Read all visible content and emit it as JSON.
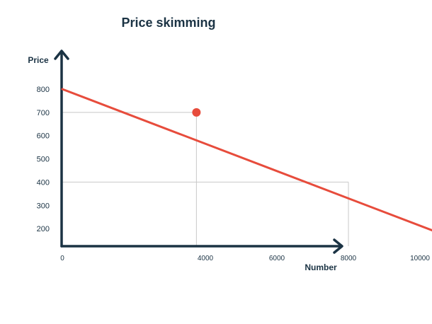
{
  "chart_data": {
    "type": "line",
    "title": "Price skimming",
    "xlabel": "Number",
    "ylabel": "Price",
    "xlim": [
      0,
      12000
    ],
    "ylim": [
      130,
      820
    ],
    "x_ticks": [
      0,
      4000,
      6000,
      8000,
      10000
    ],
    "x_tick_labels": [
      "0",
      "4000",
      "6000",
      "8000",
      "10000"
    ],
    "y_ticks": [
      200,
      300,
      400,
      500,
      600,
      700,
      800
    ],
    "y_tick_labels": [
      "200",
      "300",
      "400",
      "500",
      "600",
      "700",
      "800"
    ],
    "series": [
      {
        "x": [
          0,
          11500
        ],
        "y": [
          800,
          140
        ]
      }
    ],
    "highlight_point": {
      "x": 3750,
      "y": 700
    },
    "reference_lines": [
      {
        "from": {
          "x": 0,
          "y": 700
        },
        "to": {
          "x": 3750,
          "y": 700
        }
      },
      {
        "from": {
          "x": 3750,
          "y": 700
        },
        "to": {
          "x": 3750,
          "y": 140
        }
      },
      {
        "from": {
          "x": 0,
          "y": 400
        },
        "to": {
          "x": 8000,
          "y": 400
        }
      },
      {
        "from": {
          "x": 8000,
          "y": 400
        },
        "to": {
          "x": 8000,
          "y": 140
        }
      }
    ],
    "grid": false,
    "colors": {
      "line": "#e74c3c",
      "axis": "#1b3344",
      "guide": "#c8c8c8",
      "text": "#1b3344"
    }
  }
}
